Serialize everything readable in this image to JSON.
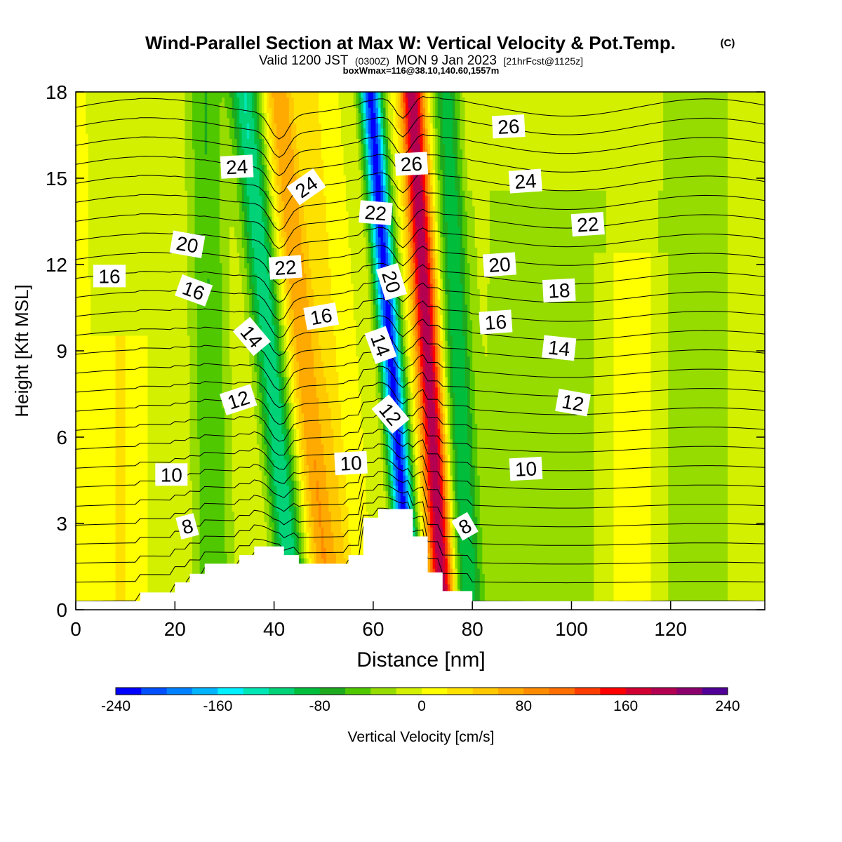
{
  "header": {
    "title": "Wind-Parallel Section at Max W: Vertical Velocity & Pot.Temp.",
    "copyright": "(C)",
    "valid_prefix": "Valid 1200 JST",
    "valid_utc": "(0300Z)",
    "valid_date": "MON 9 Jan 2023",
    "forecast": "[21hrFcst@1125z]",
    "boxinfo": "boxWmax=116@38.10,140.60,1557m"
  },
  "chart_data": {
    "type": "heatmap",
    "xlabel": "Distance [nm]",
    "ylabel": "Height [Kft MSL]",
    "xlim": [
      0,
      139
    ],
    "ylim": [
      0,
      18
    ],
    "x_ticks": [
      0,
      20,
      40,
      60,
      80,
      100,
      120
    ],
    "y_ticks": [
      0,
      3,
      6,
      9,
      12,
      15,
      18
    ],
    "colorbar": {
      "label": "Vertical Velocity [cm/s]",
      "min": -240,
      "max": 240,
      "step": 20,
      "tick_labels": [
        -240,
        -160,
        -80,
        0,
        80,
        160,
        240
      ],
      "colors": [
        "#0000ff",
        "#0050ff",
        "#0082ff",
        "#00b4ff",
        "#00f0ff",
        "#00e6b4",
        "#00d278",
        "#00be3c",
        "#1eaa1e",
        "#50c800",
        "#96dc00",
        "#d2f000",
        "#ffff00",
        "#ffe100",
        "#ffc800",
        "#ffaa00",
        "#ff8c00",
        "#ff6e00",
        "#ff3c00",
        "#ff0000",
        "#d20032",
        "#b40050",
        "#8c006e",
        "#500096"
      ]
    },
    "w_features": [
      {
        "x": 39,
        "width": 3.0,
        "value": -120,
        "slope": 0.55,
        "top": 18
      },
      {
        "x": 46,
        "width": 3.0,
        "value": 80,
        "slope": 0.55,
        "top": 18
      },
      {
        "x": 51,
        "width": 2.2,
        "value": 30,
        "slope": 0.4,
        "top": 18
      },
      {
        "x": 63.5,
        "width": 2.2,
        "value": -230,
        "slope": 0.45,
        "top": 18
      },
      {
        "x": 71,
        "width": 2.4,
        "value": 200,
        "slope": 0.35,
        "top": 18
      },
      {
        "x": 77,
        "width": 2.8,
        "value": -90,
        "slope": 0.25,
        "top": 18
      },
      {
        "x": 27,
        "width": 4.0,
        "value": -60,
        "slope": 0.1,
        "top": 18
      },
      {
        "x": 9,
        "width": 1.8,
        "value": 30,
        "slope": 0.0,
        "top": 9
      },
      {
        "x": 95,
        "width": 14,
        "value": -40,
        "slope": 0.0,
        "top": 14
      },
      {
        "x": 125,
        "width": 9,
        "value": -35,
        "slope": 0.0,
        "top": 18
      },
      {
        "x": 112,
        "width": 6,
        "value": 25,
        "slope": 0.0,
        "top": 12
      }
    ],
    "isentropes": [
      1,
      2,
      3,
      4,
      5,
      6,
      7,
      8,
      9,
      10,
      11,
      12,
      13,
      14,
      15,
      16,
      17,
      18,
      19,
      20,
      21,
      22,
      23,
      24,
      25,
      26,
      27
    ],
    "terrain": [
      {
        "x": [
          0,
          13
        ],
        "h": 0.3
      },
      {
        "x": [
          13,
          20
        ],
        "h": 0.6
      },
      {
        "x": [
          20,
          23
        ],
        "h": 0.95
      },
      {
        "x": [
          23,
          26
        ],
        "h": 1.25
      },
      {
        "x": [
          26,
          33
        ],
        "h": 1.6
      },
      {
        "x": [
          33,
          36
        ],
        "h": 1.9
      },
      {
        "x": [
          36,
          42
        ],
        "h": 2.2
      },
      {
        "x": [
          42,
          45
        ],
        "h": 1.9
      },
      {
        "x": [
          45,
          55
        ],
        "h": 1.6
      },
      {
        "x": [
          55,
          58
        ],
        "h": 1.9
      },
      {
        "x": [
          58,
          61
        ],
        "h": 3.2
      },
      {
        "x": [
          61,
          68
        ],
        "h": 3.5
      },
      {
        "x": [
          68,
          71
        ],
        "h": 2.55
      },
      {
        "x": [
          71,
          74
        ],
        "h": 1.3
      },
      {
        "x": [
          74,
          80
        ],
        "h": 0.65
      },
      {
        "x": [
          80,
          139
        ],
        "h": 0.3
      }
    ],
    "contour_labels": [
      {
        "text": "24",
        "x": 32.5,
        "y": 15.4,
        "angle": -3
      },
      {
        "text": "24",
        "x": 46.5,
        "y": 14.7,
        "angle": -35
      },
      {
        "text": "26",
        "x": 67.7,
        "y": 15.5,
        "angle": -3
      },
      {
        "text": "26",
        "x": 87.3,
        "y": 16.8,
        "angle": -3
      },
      {
        "text": "22",
        "x": 60.5,
        "y": 13.8,
        "angle": 5
      },
      {
        "text": "24",
        "x": 90.7,
        "y": 14.9,
        "angle": -4
      },
      {
        "text": "22",
        "x": 103.3,
        "y": 13.4,
        "angle": -4
      },
      {
        "text": "20",
        "x": 22.5,
        "y": 12.7,
        "angle": 10
      },
      {
        "text": "22",
        "x": 42.3,
        "y": 11.9,
        "angle": -4
      },
      {
        "text": "20",
        "x": 63.7,
        "y": 11.4,
        "angle": 73
      },
      {
        "text": "20",
        "x": 85.5,
        "y": 12.0,
        "angle": -4
      },
      {
        "text": "16",
        "x": 6.8,
        "y": 11.6,
        "angle": 0
      },
      {
        "text": "16",
        "x": 23.8,
        "y": 11.1,
        "angle": 20
      },
      {
        "text": "18",
        "x": 97.5,
        "y": 11.1,
        "angle": -3
      },
      {
        "text": "16",
        "x": 49.5,
        "y": 10.2,
        "angle": -10
      },
      {
        "text": "16",
        "x": 84.7,
        "y": 10.0,
        "angle": -4
      },
      {
        "text": "14",
        "x": 35.5,
        "y": 9.5,
        "angle": 50
      },
      {
        "text": "14",
        "x": 61.5,
        "y": 9.2,
        "angle": 70
      },
      {
        "text": "14",
        "x": 97.5,
        "y": 9.1,
        "angle": 6
      },
      {
        "text": "12",
        "x": 32.8,
        "y": 7.3,
        "angle": -18
      },
      {
        "text": "12",
        "x": 63.5,
        "y": 6.8,
        "angle": 50
      },
      {
        "text": "12",
        "x": 100.3,
        "y": 7.2,
        "angle": 10
      },
      {
        "text": "10",
        "x": 19.3,
        "y": 4.7,
        "angle": 0
      },
      {
        "text": "10",
        "x": 55.5,
        "y": 5.1,
        "angle": -3
      },
      {
        "text": "10",
        "x": 90.8,
        "y": 4.9,
        "angle": -3
      },
      {
        "text": "8",
        "x": 22.5,
        "y": 2.9,
        "angle": -15
      },
      {
        "text": "8",
        "x": 78.5,
        "y": 2.9,
        "angle": -30
      }
    ]
  }
}
